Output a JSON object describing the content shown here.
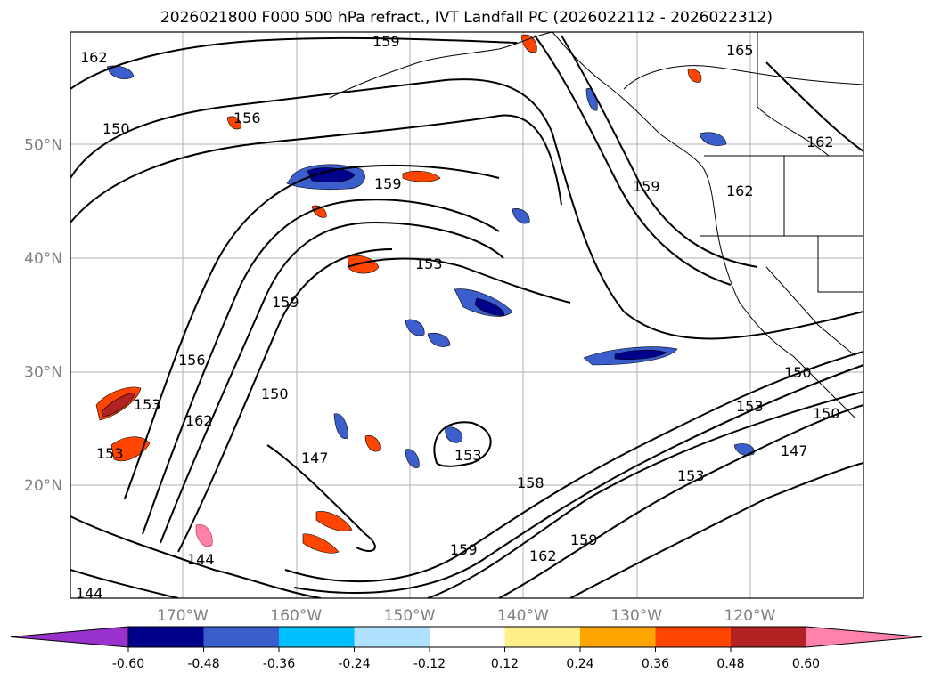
{
  "title": "2026021800 F000 500 hPa refract., IVT Landfall PC (2026022112 - 2026022312)",
  "map": {
    "lat_labels": [
      {
        "text": "50°N",
        "lat": 50
      },
      {
        "text": "40°N",
        "lat": 40
      },
      {
        "text": "30°N",
        "lat": 30
      },
      {
        "text": "20°N",
        "lat": 20
      }
    ],
    "lon_labels": [
      {
        "text": "170°W",
        "lon": -170
      },
      {
        "text": "160°W",
        "lon": -160
      },
      {
        "text": "150°W",
        "lon": -150
      },
      {
        "text": "140°W",
        "lon": -140
      },
      {
        "text": "130°W",
        "lon": -130
      },
      {
        "text": "120°W",
        "lon": -120
      }
    ],
    "contour_labels": [
      "162",
      "159",
      "156",
      "159",
      "153",
      "159",
      "150",
      "156",
      "153",
      "162",
      "153",
      "150",
      "147",
      "144",
      "144",
      "153",
      "158",
      "159",
      "162",
      "159",
      "153",
      "147",
      "150",
      "153",
      "150",
      "165",
      "162",
      "162",
      "159"
    ]
  },
  "colorbar": {
    "colors": [
      "#9932cc",
      "#00008b",
      "#3a5fcd",
      "#00bfff",
      "#b0e2ff",
      "#ffffff",
      "#fff08c",
      "#ffa500",
      "#ff4500",
      "#b22222",
      "#ff82ab"
    ],
    "labels": [
      "-0.60",
      "-0.48",
      "-0.36",
      "-0.24",
      "-0.12",
      "0.12",
      "0.24",
      "0.36",
      "0.48",
      "0.60"
    ]
  }
}
